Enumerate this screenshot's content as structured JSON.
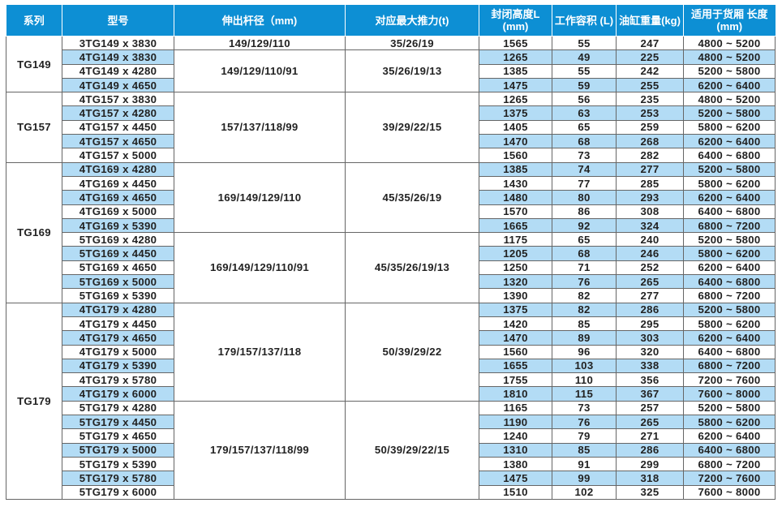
{
  "headers": [
    "系列",
    "型号",
    "伸出杆径（mm)",
    "对应最大推力(t)",
    "封闭高度L (mm)",
    "工作容积 (L)",
    "油缸重量(kg)",
    "适用于货厢 长度(mm)"
  ],
  "colors": {
    "header_bg": "#0d8fd4",
    "alt_row": "#b3dcf5"
  },
  "series": [
    {
      "name": "TG149",
      "groups": [
        {
          "rod": "149/129/110",
          "thrust": "35/26/19",
          "rows": [
            [
              "3TG149 x 3830",
              "1565",
              "55",
              "247",
              "4800 ~ 5200"
            ]
          ]
        },
        {
          "rod": "149/129/110/91",
          "thrust": "35/26/19/13",
          "rows": [
            [
              "4TG149 x 3830",
              "1265",
              "49",
              "225",
              "4800 ~ 5200"
            ],
            [
              "4TG149 x 4280",
              "1385",
              "55",
              "242",
              "5200 ~ 5800"
            ],
            [
              "4TG149 x 4650",
              "1475",
              "59",
              "255",
              "6200 ~ 6400"
            ]
          ]
        }
      ]
    },
    {
      "name": "TG157",
      "groups": [
        {
          "rod": "157/137/118/99",
          "thrust": "39/29/22/15",
          "rows": [
            [
              "4TG157 x 3830",
              "1265",
              "56",
              "235",
              "4800 ~ 5200"
            ],
            [
              "4TG157 x 4280",
              "1375",
              "63",
              "253",
              "5200 ~ 5800"
            ],
            [
              "4TG157 x 4450",
              "1405",
              "65",
              "259",
              "5800 ~ 6200"
            ],
            [
              "4TG157 x 4650",
              "1470",
              "68",
              "268",
              "6200 ~ 6400"
            ],
            [
              "4TG157 x 5000",
              "1560",
              "73",
              "282",
              "6400 ~ 6800"
            ]
          ]
        }
      ]
    },
    {
      "name": "TG169",
      "groups": [
        {
          "rod": "169/149/129/110",
          "thrust": "45/35/26/19",
          "rows": [
            [
              "4TG169 x 4280",
              "1385",
              "74",
              "277",
              "5200 ~ 5800"
            ],
            [
              "4TG169 x 4450",
              "1430",
              "77",
              "285",
              "5800 ~ 6200"
            ],
            [
              "4TG169 x 4650",
              "1480",
              "80",
              "293",
              "6200 ~ 6400"
            ],
            [
              "4TG169 x 5000",
              "1570",
              "86",
              "308",
              "6400 ~ 6800"
            ],
            [
              "4TG169 x 5390",
              "1665",
              "92",
              "324",
              "6800 ~ 7200"
            ]
          ]
        },
        {
          "rod": "169/149/129/110/91",
          "thrust": "45/35/26/19/13",
          "rows": [
            [
              "5TG169 x 4280",
              "1175",
              "65",
              "240",
              "5200 ~ 5800"
            ],
            [
              "5TG169 x 4450",
              "1205",
              "68",
              "246",
              "5800 ~ 6200"
            ],
            [
              "5TG169 x 4650",
              "1250",
              "71",
              "252",
              "6200 ~ 6400"
            ],
            [
              "5TG169 x 5000",
              "1320",
              "76",
              "265",
              "6400 ~ 6800"
            ],
            [
              "5TG169 x 5390",
              "1390",
              "82",
              "277",
              "6800 ~ 7200"
            ]
          ]
        }
      ]
    },
    {
      "name": "TG179",
      "groups": [
        {
          "rod": "179/157/137/118",
          "thrust": "50/39/29/22",
          "rows": [
            [
              "4TG179 x 4280",
              "1375",
              "82",
              "286",
              "5200 ~ 5800"
            ],
            [
              "4TG179 x 4450",
              "1420",
              "85",
              "295",
              "5800 ~ 6200"
            ],
            [
              "4TG179 x 4650",
              "1470",
              "89",
              "303",
              "6200 ~ 6400"
            ],
            [
              "4TG179 x 5000",
              "1560",
              "96",
              "320",
              "6400 ~ 6800"
            ],
            [
              "4TG179 x 5390",
              "1655",
              "103",
              "338",
              "6800 ~ 7200"
            ],
            [
              "4TG179 x 5780",
              "1755",
              "110",
              "356",
              "7200 ~ 7600"
            ],
            [
              "4TG179 x 6000",
              "1810",
              "115",
              "367",
              "7600 ~ 8000"
            ]
          ]
        },
        {
          "rod": "179/157/137/118/99",
          "thrust": "50/39/29/22/15",
          "rows": [
            [
              "5TG179 x 4280",
              "1165",
              "73",
              "257",
              "5200 ~ 5800"
            ],
            [
              "5TG179 x 4450",
              "1190",
              "76",
              "265",
              "5800 ~ 6200"
            ],
            [
              "5TG179 x 4650",
              "1240",
              "79",
              "271",
              "6200 ~ 6400"
            ],
            [
              "5TG179 x 5000",
              "1310",
              "85",
              "286",
              "6400 ~ 6800"
            ],
            [
              "5TG179 x 5390",
              "1380",
              "91",
              "299",
              "6800 ~ 7200"
            ],
            [
              "5TG179 x 5780",
              "1475",
              "99",
              "318",
              "7200 ~ 7600"
            ],
            [
              "5TG179 x 6000",
              "1510",
              "102",
              "325",
              "7600 ~ 8000"
            ]
          ]
        }
      ]
    }
  ]
}
